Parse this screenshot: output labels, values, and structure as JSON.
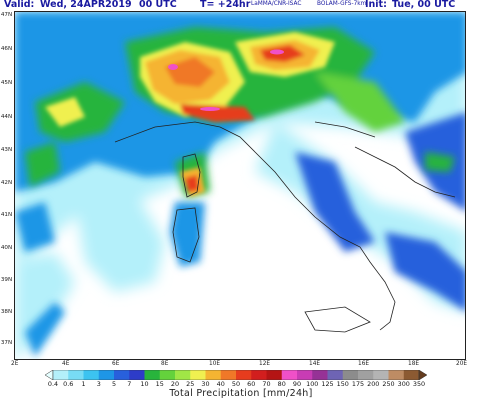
{
  "header": {
    "valid_label": "Valid:",
    "valid_date": "Wed, 24APR2019",
    "valid_time": "00 UTC",
    "forecast_step": "T= +24hr",
    "credits": "LaMMA/CNR-ISAC",
    "model": "BOLAM-GFS-7km",
    "init_label": "Init:",
    "init_value": "Tue, 00 UTC"
  },
  "lat_labels": [
    "47N",
    "46N",
    "45N",
    "44N",
    "43N",
    "42N",
    "41N",
    "40N",
    "39N",
    "38N",
    "37N"
  ],
  "lon_labels": [
    "2E",
    "4E",
    "6E",
    "8E",
    "10E",
    "12E",
    "14E",
    "16E",
    "18E",
    "20E"
  ],
  "colorbar": {
    "title": "Total Precipitation [mm/24h]",
    "labels": [
      "0.4",
      "0.6",
      "1",
      "3",
      "5",
      "7",
      "10",
      "15",
      "20",
      "25",
      "30",
      "40",
      "50",
      "60",
      "70",
      "80",
      "90",
      "100",
      "125",
      "150",
      "175",
      "200",
      "250",
      "300",
      "350"
    ],
    "colors": [
      "#e6ffff",
      "#b4f0fa",
      "#78dcf5",
      "#3cc3f0",
      "#1e96e6",
      "#2860dc",
      "#2d3cc8",
      "#28b43c",
      "#64d23c",
      "#a0e646",
      "#f0f050",
      "#f5b432",
      "#f07828",
      "#e63c1e",
      "#d21e1e",
      "#b41414",
      "#f050c8",
      "#c83cb4",
      "#963296",
      "#6e64b4",
      "#8c8c8c",
      "#a0a0a0",
      "#b4b4b4",
      "#be8c64",
      "#8c5a32",
      "#643c1e"
    ]
  }
}
